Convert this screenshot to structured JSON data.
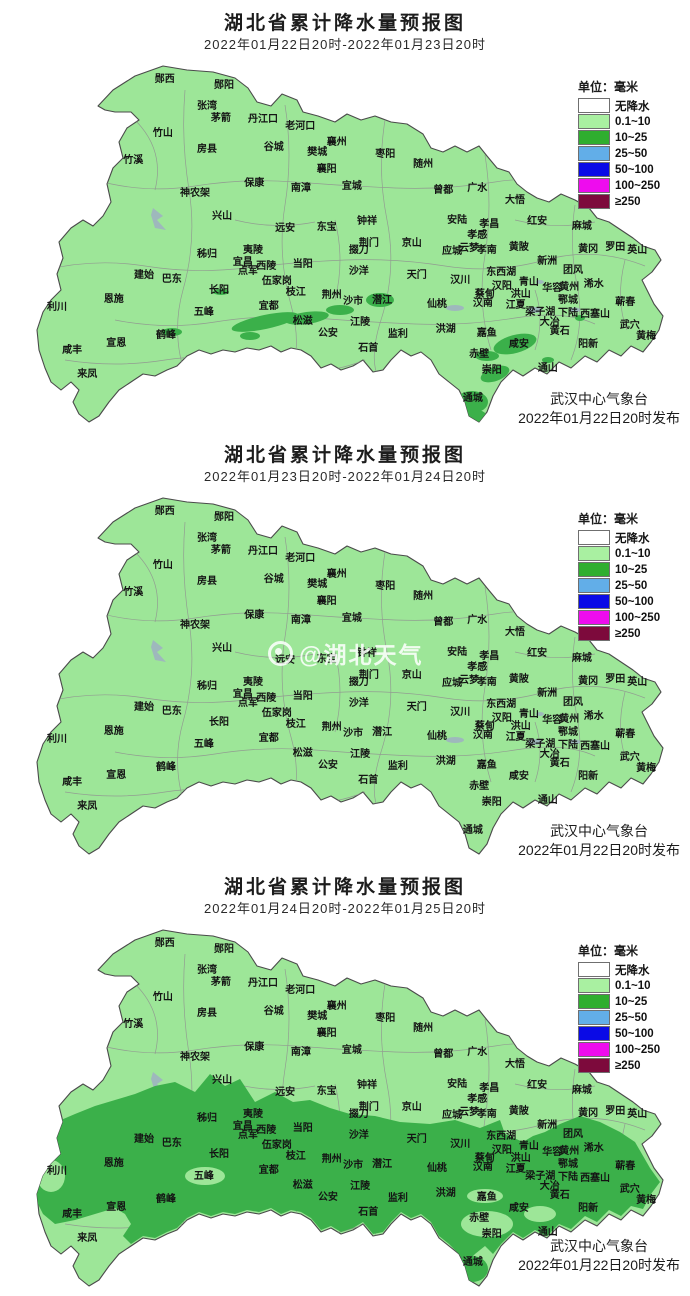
{
  "legend": {
    "unit_label": "单位：毫米",
    "items": [
      {
        "label": "无降水",
        "color": "#ffffff"
      },
      {
        "label": "0.1~10",
        "color": "#a9f0a1"
      },
      {
        "label": "10~25",
        "color": "#2fae2f"
      },
      {
        "label": "25~50",
        "color": "#62aee8"
      },
      {
        "label": "50~100",
        "color": "#0a0ae6"
      },
      {
        "label": "100~250",
        "color": "#ee0cee"
      },
      {
        "label": "≥250",
        "color": "#7d0a3c"
      }
    ]
  },
  "colors": {
    "map_base": "#9de698",
    "map_heavy": "#3bb04a",
    "county_boundary": "#909090",
    "province_boundary": "#4a4a4a"
  },
  "panels": [
    {
      "title": "湖北省累计降水量预报图",
      "subtitle": "2022年01月22日20时-2022年01月23日20时",
      "issuer": "武汉中心气象台",
      "issued": "2022年01月22日20时发布"
    },
    {
      "title": "湖北省累计降水量预报图",
      "subtitle": "2022年01月23日20时-2022年01月24日20时",
      "issuer": "武汉中心气象台",
      "issued": "2022年01月22日20时发布",
      "watermark": "@湖北天气"
    },
    {
      "title": "湖北省累计降水量预报图",
      "subtitle": "2022年01月24日20时-2022年01月25日20时",
      "issuer": "武汉中心气象台",
      "issued": "2022年01月22日20时发布"
    }
  ],
  "counties": [
    [
      "郧西",
      20.6,
      5.4
    ],
    [
      "郧阳",
      30.0,
      7.0
    ],
    [
      "张湾",
      27.3,
      12.7
    ],
    [
      "茅箭",
      29.5,
      15.9
    ],
    [
      "丹江口",
      36.2,
      16.2
    ],
    [
      "老河口",
      42.1,
      18.1
    ],
    [
      "竹山",
      20.3,
      20.0
    ],
    [
      "房县",
      27.3,
      24.3
    ],
    [
      "谷城",
      37.9,
      23.8
    ],
    [
      "竹溪",
      15.6,
      27.3
    ],
    [
      "襄州",
      47.9,
      22.4
    ],
    [
      "樊城",
      44.8,
      25.1
    ],
    [
      "襄阳",
      46.3,
      29.7
    ],
    [
      "枣阳",
      55.6,
      25.7
    ],
    [
      "随州",
      61.6,
      28.4
    ],
    [
      "保康",
      34.8,
      33.5
    ],
    [
      "南漳",
      42.2,
      34.9
    ],
    [
      "宜城",
      50.3,
      34.3
    ],
    [
      "神农架",
      25.4,
      36.2
    ],
    [
      "曾都",
      64.8,
      35.4
    ],
    [
      "广水",
      70.2,
      34.9
    ],
    [
      "大悟",
      76.2,
      38.1
    ],
    [
      "兴山",
      29.7,
      42.4
    ],
    [
      "远安",
      39.7,
      45.7
    ],
    [
      "东宝",
      46.3,
      45.4
    ],
    [
      "钟祥",
      52.7,
      43.8
    ],
    [
      "荆门",
      53.0,
      49.7
    ],
    [
      "京山",
      59.8,
      49.7
    ],
    [
      "安陆",
      67.0,
      43.5
    ],
    [
      "孝昌",
      72.1,
      44.6
    ],
    [
      "红安",
      79.7,
      43.8
    ],
    [
      "麻城",
      86.8,
      45.1
    ],
    [
      "孝感",
      70.2,
      47.6
    ],
    [
      "云梦",
      68.9,
      51.1
    ],
    [
      "孝南",
      71.7,
      51.6
    ],
    [
      "应城",
      66.2,
      51.9
    ],
    [
      "黄陂",
      76.8,
      50.8
    ],
    [
      "罗田",
      92.1,
      50.8
    ],
    [
      "英山",
      95.6,
      51.6
    ],
    [
      "黄冈",
      87.8,
      51.4
    ],
    [
      "新洲",
      81.3,
      54.6
    ],
    [
      "团风",
      85.4,
      57.0
    ],
    [
      "掇刀",
      51.4,
      51.6
    ],
    [
      "沙洋",
      51.4,
      57.3
    ],
    [
      "秭归",
      27.3,
      52.7
    ],
    [
      "夷陵",
      34.6,
      51.6
    ],
    [
      "宜昌",
      33.0,
      54.9
    ],
    [
      "点军",
      33.8,
      57.3
    ],
    [
      "西陵",
      36.7,
      55.9
    ],
    [
      "当阳",
      42.5,
      55.4
    ],
    [
      "东西湖",
      74.0,
      57.6
    ],
    [
      "汉川",
      67.5,
      59.7
    ],
    [
      "天门",
      60.6,
      58.4
    ],
    [
      "汉阳",
      74.1,
      61.4
    ],
    [
      "青山",
      78.4,
      60.3
    ],
    [
      "华容",
      82.1,
      61.9
    ],
    [
      "黄州",
      84.8,
      61.6
    ],
    [
      "浠水",
      88.7,
      60.8
    ],
    [
      "建始",
      17.3,
      58.4
    ],
    [
      "巴东",
      21.7,
      59.5
    ],
    [
      "长阳",
      29.2,
      62.4
    ],
    [
      "伍家岗",
      38.4,
      60.0
    ],
    [
      "枝江",
      41.4,
      63.0
    ],
    [
      "荆州",
      47.1,
      63.8
    ],
    [
      "沙市",
      50.5,
      65.4
    ],
    [
      "潜江",
      55.1,
      65.1
    ],
    [
      "仙桃",
      63.8,
      66.2
    ],
    [
      "蔡甸",
      71.4,
      63.5
    ],
    [
      "洪山",
      77.1,
      63.5
    ],
    [
      "汉南",
      71.1,
      65.9
    ],
    [
      "鄂城",
      84.6,
      65.1
    ],
    [
      "恩施",
      12.5,
      64.9
    ],
    [
      "利川",
      3.5,
      67.0
    ],
    [
      "宜都",
      37.1,
      66.8
    ],
    [
      "江夏",
      76.3,
      66.5
    ],
    [
      "梁子湖",
      80.2,
      68.4
    ],
    [
      "下陆",
      84.6,
      68.6
    ],
    [
      "西塞山",
      88.9,
      68.9
    ],
    [
      "蕲春",
      93.7,
      65.7
    ],
    [
      "五峰",
      26.8,
      68.4
    ],
    [
      "松滋",
      42.5,
      70.8
    ],
    [
      "江陵",
      51.6,
      71.1
    ],
    [
      "监利",
      57.6,
      74.3
    ],
    [
      "洪湖",
      65.2,
      73.0
    ],
    [
      "大冶",
      81.7,
      71.1
    ],
    [
      "黄石",
      83.3,
      73.5
    ],
    [
      "武穴",
      94.4,
      71.9
    ],
    [
      "黄梅",
      97.0,
      74.9
    ],
    [
      "鹤峰",
      20.8,
      74.6
    ],
    [
      "宣恩",
      12.9,
      76.8
    ],
    [
      "公安",
      46.5,
      74.1
    ],
    [
      "石首",
      52.9,
      78.1
    ],
    [
      "嘉鱼",
      71.7,
      74.1
    ],
    [
      "咸安",
      76.8,
      77.0
    ],
    [
      "阳新",
      87.8,
      77.0
    ],
    [
      "咸丰",
      5.9,
      78.6
    ],
    [
      "来凤",
      8.3,
      85.1
    ],
    [
      "赤壁",
      70.5,
      79.7
    ],
    [
      "崇阳",
      72.5,
      84.1
    ],
    [
      "通山",
      81.4,
      83.5
    ],
    [
      "通城",
      69.5,
      91.6
    ]
  ]
}
